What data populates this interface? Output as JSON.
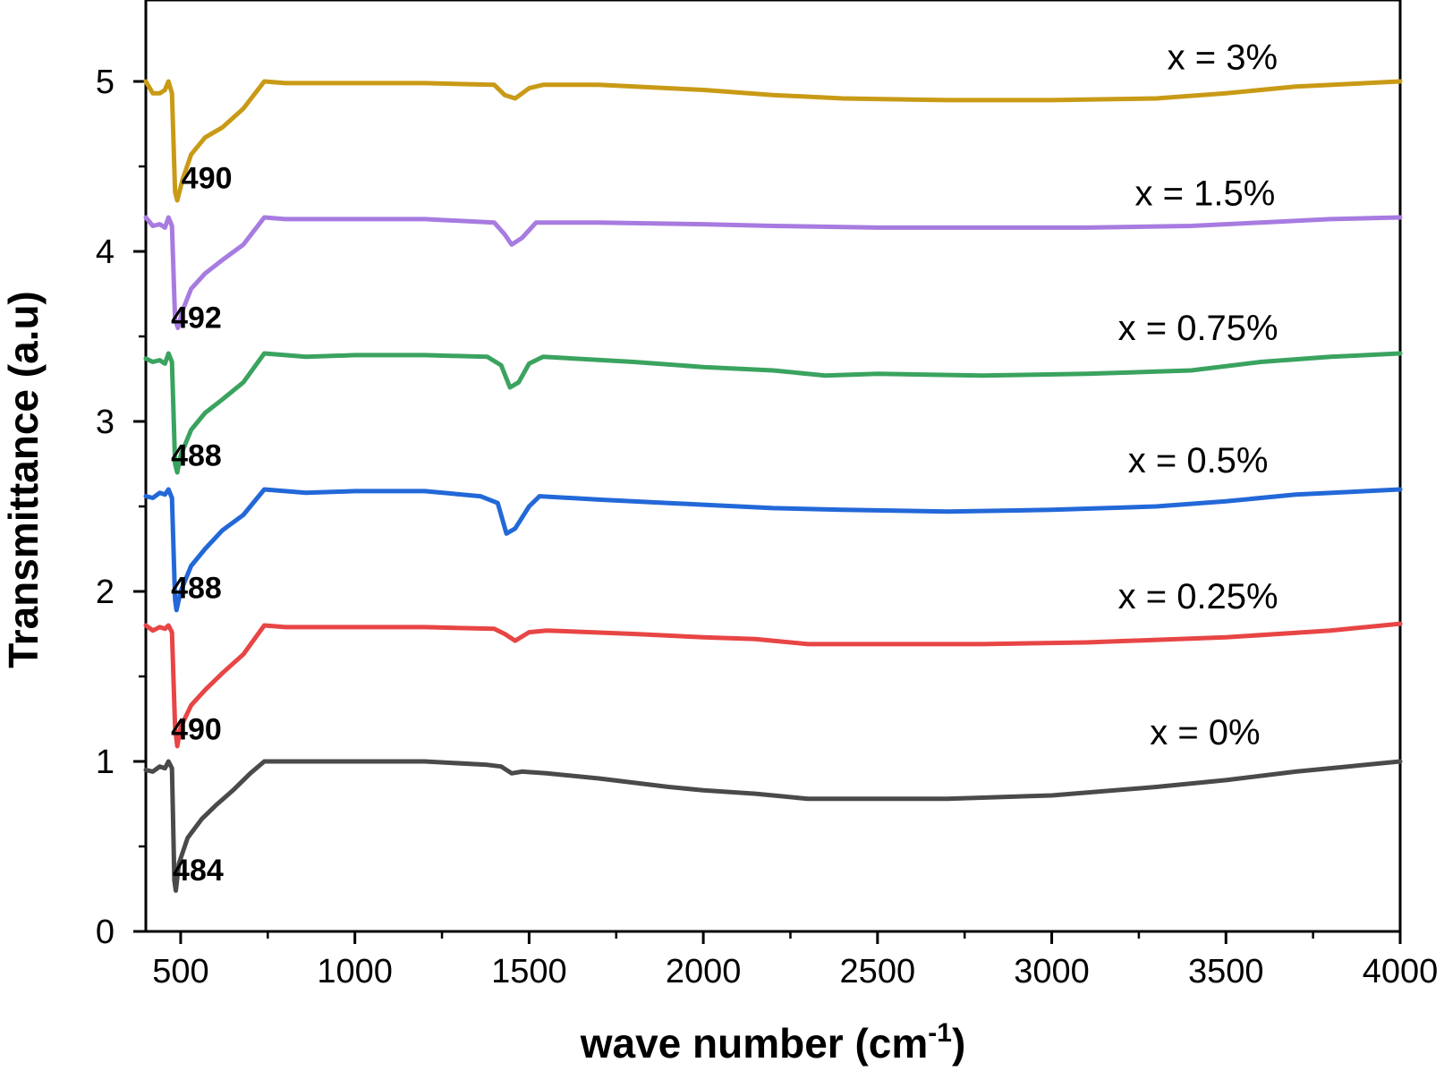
{
  "chart_data": {
    "type": "line",
    "title": "",
    "xlabel": "wave number (cm",
    "xlabel_sup": "-1",
    "xlabel_tail": ")",
    "ylabel": "Transmittance (a.u)",
    "xlim": [
      400,
      4000
    ],
    "ylim": [
      0,
      5.5
    ],
    "xticks": [
      500,
      1000,
      1500,
      2000,
      2500,
      3000,
      3500,
      4000
    ],
    "xtick_labels": [
      "500",
      "1000",
      "1500",
      "2000",
      "2500",
      "3000",
      "3500",
      "4000"
    ],
    "yticks": [
      0,
      1,
      2,
      3,
      4,
      5
    ],
    "ytick_labels": [
      "0",
      "1",
      "2",
      "3",
      "4",
      "5"
    ],
    "series": [
      {
        "name": "x = 0%",
        "color": "#4a4a4a",
        "peak_label": "484",
        "peak_label_pos": [
          550,
          0.3
        ],
        "name_pos": [
          3440,
          1.1
        ],
        "points": [
          [
            400,
            0.95
          ],
          [
            420,
            0.94
          ],
          [
            440,
            0.97
          ],
          [
            455,
            0.96
          ],
          [
            465,
            1.0
          ],
          [
            475,
            0.96
          ],
          [
            482,
            0.3
          ],
          [
            486,
            0.24
          ],
          [
            495,
            0.4
          ],
          [
            520,
            0.55
          ],
          [
            560,
            0.66
          ],
          [
            600,
            0.74
          ],
          [
            650,
            0.83
          ],
          [
            700,
            0.93
          ],
          [
            740,
            1.0
          ],
          [
            800,
            1.0
          ],
          [
            900,
            1.0
          ],
          [
            1000,
            1.0
          ],
          [
            1200,
            1.0
          ],
          [
            1380,
            0.98
          ],
          [
            1420,
            0.97
          ],
          [
            1450,
            0.93
          ],
          [
            1480,
            0.94
          ],
          [
            1550,
            0.93
          ],
          [
            1700,
            0.9
          ],
          [
            1900,
            0.85
          ],
          [
            2000,
            0.83
          ],
          [
            2150,
            0.81
          ],
          [
            2300,
            0.78
          ],
          [
            2500,
            0.78
          ],
          [
            2700,
            0.78
          ],
          [
            3000,
            0.8
          ],
          [
            3300,
            0.85
          ],
          [
            3500,
            0.89
          ],
          [
            3700,
            0.94
          ],
          [
            3850,
            0.97
          ],
          [
            4000,
            1.0
          ]
        ]
      },
      {
        "name": "x = 0.25%",
        "color": "#e84545",
        "peak_label": "490",
        "peak_label_pos": [
          545,
          1.13
        ],
        "name_pos": [
          3420,
          1.9
        ],
        "points": [
          [
            400,
            1.8
          ],
          [
            420,
            1.77
          ],
          [
            440,
            1.79
          ],
          [
            455,
            1.78
          ],
          [
            465,
            1.8
          ],
          [
            475,
            1.76
          ],
          [
            484,
            1.2
          ],
          [
            490,
            1.09
          ],
          [
            500,
            1.2
          ],
          [
            530,
            1.33
          ],
          [
            570,
            1.42
          ],
          [
            620,
            1.52
          ],
          [
            680,
            1.63
          ],
          [
            740,
            1.8
          ],
          [
            800,
            1.79
          ],
          [
            1000,
            1.79
          ],
          [
            1200,
            1.79
          ],
          [
            1400,
            1.78
          ],
          [
            1430,
            1.75
          ],
          [
            1460,
            1.71
          ],
          [
            1500,
            1.76
          ],
          [
            1550,
            1.77
          ],
          [
            1800,
            1.75
          ],
          [
            2000,
            1.73
          ],
          [
            2150,
            1.72
          ],
          [
            2300,
            1.69
          ],
          [
            2500,
            1.69
          ],
          [
            2800,
            1.69
          ],
          [
            3100,
            1.7
          ],
          [
            3500,
            1.73
          ],
          [
            3800,
            1.77
          ],
          [
            4000,
            1.81
          ]
        ]
      },
      {
        "name": "x = 0.5%",
        "color": "#2368d8",
        "peak_label": "488",
        "peak_label_pos": [
          545,
          1.96
        ],
        "name_pos": [
          3420,
          2.7
        ],
        "points": [
          [
            400,
            2.56
          ],
          [
            420,
            2.55
          ],
          [
            440,
            2.58
          ],
          [
            455,
            2.57
          ],
          [
            465,
            2.6
          ],
          [
            475,
            2.55
          ],
          [
            484,
            1.95
          ],
          [
            488,
            1.89
          ],
          [
            500,
            2.0
          ],
          [
            530,
            2.15
          ],
          [
            570,
            2.25
          ],
          [
            620,
            2.36
          ],
          [
            680,
            2.45
          ],
          [
            740,
            2.6
          ],
          [
            800,
            2.59
          ],
          [
            860,
            2.58
          ],
          [
            1000,
            2.59
          ],
          [
            1200,
            2.59
          ],
          [
            1360,
            2.56
          ],
          [
            1410,
            2.52
          ],
          [
            1435,
            2.34
          ],
          [
            1460,
            2.37
          ],
          [
            1500,
            2.5
          ],
          [
            1530,
            2.56
          ],
          [
            1700,
            2.54
          ],
          [
            1900,
            2.52
          ],
          [
            2000,
            2.51
          ],
          [
            2200,
            2.49
          ],
          [
            2400,
            2.48
          ],
          [
            2700,
            2.47
          ],
          [
            3000,
            2.48
          ],
          [
            3300,
            2.5
          ],
          [
            3500,
            2.53
          ],
          [
            3700,
            2.57
          ],
          [
            4000,
            2.6
          ]
        ]
      },
      {
        "name": "x = 0.75%",
        "color": "#3aa35f",
        "peak_label": "488",
        "peak_label_pos": [
          545,
          2.74
        ],
        "name_pos": [
          3420,
          3.48
        ],
        "points": [
          [
            400,
            3.37
          ],
          [
            420,
            3.35
          ],
          [
            440,
            3.36
          ],
          [
            455,
            3.34
          ],
          [
            465,
            3.4
          ],
          [
            475,
            3.35
          ],
          [
            484,
            2.75
          ],
          [
            490,
            2.7
          ],
          [
            500,
            2.8
          ],
          [
            530,
            2.95
          ],
          [
            570,
            3.05
          ],
          [
            620,
            3.13
          ],
          [
            680,
            3.23
          ],
          [
            740,
            3.4
          ],
          [
            800,
            3.39
          ],
          [
            860,
            3.38
          ],
          [
            1000,
            3.39
          ],
          [
            1200,
            3.39
          ],
          [
            1380,
            3.38
          ],
          [
            1420,
            3.33
          ],
          [
            1445,
            3.2
          ],
          [
            1470,
            3.23
          ],
          [
            1500,
            3.34
          ],
          [
            1540,
            3.38
          ],
          [
            1800,
            3.35
          ],
          [
            2000,
            3.32
          ],
          [
            2200,
            3.3
          ],
          [
            2350,
            3.27
          ],
          [
            2500,
            3.28
          ],
          [
            2800,
            3.27
          ],
          [
            3100,
            3.28
          ],
          [
            3400,
            3.3
          ],
          [
            3600,
            3.35
          ],
          [
            3800,
            3.38
          ],
          [
            4000,
            3.4
          ]
        ]
      },
      {
        "name": "x = 1.5%",
        "color": "#a77be0",
        "peak_label": "492",
        "peak_label_pos": [
          545,
          3.55
        ],
        "name_pos": [
          3440,
          4.27
        ],
        "points": [
          [
            400,
            4.2
          ],
          [
            420,
            4.15
          ],
          [
            440,
            4.16
          ],
          [
            455,
            4.14
          ],
          [
            465,
            4.2
          ],
          [
            475,
            4.15
          ],
          [
            484,
            3.6
          ],
          [
            492,
            3.55
          ],
          [
            505,
            3.65
          ],
          [
            530,
            3.78
          ],
          [
            570,
            3.87
          ],
          [
            620,
            3.95
          ],
          [
            680,
            4.04
          ],
          [
            740,
            4.2
          ],
          [
            800,
            4.19
          ],
          [
            1000,
            4.19
          ],
          [
            1200,
            4.19
          ],
          [
            1400,
            4.17
          ],
          [
            1430,
            4.1
          ],
          [
            1450,
            4.04
          ],
          [
            1480,
            4.08
          ],
          [
            1520,
            4.17
          ],
          [
            1700,
            4.17
          ],
          [
            2000,
            4.16
          ],
          [
            2200,
            4.15
          ],
          [
            2500,
            4.14
          ],
          [
            2800,
            4.14
          ],
          [
            3100,
            4.14
          ],
          [
            3400,
            4.15
          ],
          [
            3600,
            4.17
          ],
          [
            3800,
            4.19
          ],
          [
            4000,
            4.2
          ]
        ]
      },
      {
        "name": "x = 3%",
        "color": "#c99a16",
        "peak_label": "490",
        "peak_label_pos": [
          575,
          4.37
        ],
        "name_pos": [
          3490,
          5.07
        ],
        "points": [
          [
            400,
            5.0
          ],
          [
            420,
            4.93
          ],
          [
            440,
            4.93
          ],
          [
            455,
            4.95
          ],
          [
            465,
            5.0
          ],
          [
            475,
            4.93
          ],
          [
            484,
            4.35
          ],
          [
            490,
            4.3
          ],
          [
            505,
            4.42
          ],
          [
            530,
            4.57
          ],
          [
            570,
            4.67
          ],
          [
            620,
            4.73
          ],
          [
            680,
            4.84
          ],
          [
            740,
            5.0
          ],
          [
            800,
            4.99
          ],
          [
            1000,
            4.99
          ],
          [
            1200,
            4.99
          ],
          [
            1400,
            4.98
          ],
          [
            1430,
            4.92
          ],
          [
            1460,
            4.9
          ],
          [
            1500,
            4.96
          ],
          [
            1540,
            4.98
          ],
          [
            1700,
            4.98
          ],
          [
            2000,
            4.95
          ],
          [
            2200,
            4.92
          ],
          [
            2400,
            4.9
          ],
          [
            2700,
            4.89
          ],
          [
            3000,
            4.89
          ],
          [
            3300,
            4.9
          ],
          [
            3500,
            4.93
          ],
          [
            3700,
            4.97
          ],
          [
            4000,
            5.0
          ]
        ]
      }
    ]
  }
}
